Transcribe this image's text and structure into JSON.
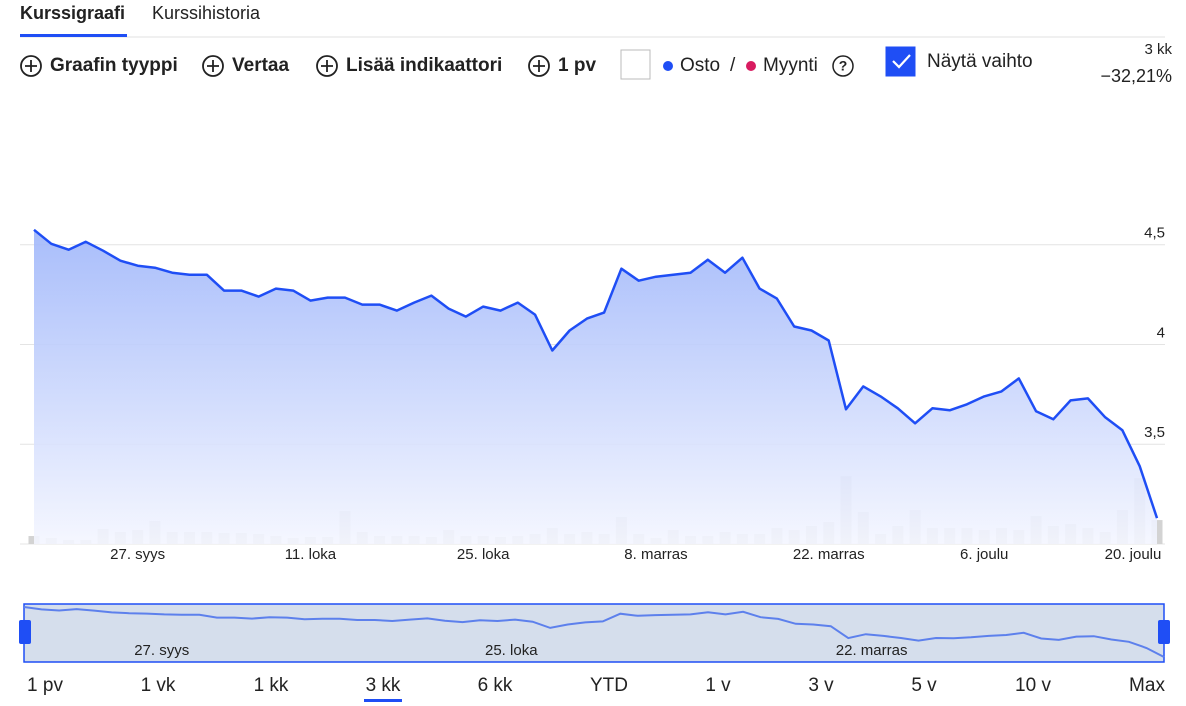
{
  "tabs": [
    "Kurssigraafi",
    "Kurssihistoria"
  ],
  "active_tab": 0,
  "toolbar": {
    "buttons": [
      "Graafin tyyppi",
      "Vertaa",
      "Lisää indikaattori",
      "1 pv"
    ],
    "separator": "/",
    "sell": "Myynti",
    "sell_color": "#d81b60",
    "help": "?",
    "show_volume": "Näytä vaihto",
    "show_volume_checked": true
  },
  "period": {
    "label": "3 kk",
    "change": "−32,21%"
  },
  "chart_data": {
    "type": "line",
    "categories": [
      null,
      null,
      null,
      null,
      null,
      null,
      "27. syys",
      null,
      null,
      null,
      null,
      null,
      null,
      null,
      null,
      null,
      "11. loka",
      null,
      null,
      null,
      null,
      null,
      null,
      null,
      null,
      null,
      "25. loka",
      null,
      null,
      null,
      null,
      null,
      null,
      null,
      null,
      null,
      "8. marras",
      null,
      null,
      null,
      null,
      null,
      null,
      null,
      null,
      null,
      "22. marras",
      null,
      null,
      null,
      null,
      null,
      null,
      null,
      null,
      "6. joulu",
      null,
      null,
      null,
      null,
      null,
      null,
      null,
      null,
      "20. joulu",
      null
    ],
    "series": [
      {
        "name": "Osto",
        "color": "#1f4ef5",
        "values": [
          4.575,
          4.505,
          4.475,
          4.515,
          4.47,
          4.42,
          4.395,
          4.385,
          4.36,
          4.35,
          4.35,
          4.27,
          4.27,
          4.24,
          4.28,
          4.27,
          4.22,
          4.235,
          4.235,
          4.2,
          4.2,
          4.17,
          4.21,
          4.245,
          4.18,
          4.14,
          4.19,
          4.17,
          4.21,
          4.15,
          3.97,
          4.07,
          4.13,
          4.16,
          4.38,
          4.32,
          4.34,
          4.35,
          4.36,
          4.425,
          4.36,
          4.435,
          4.28,
          4.23,
          4.09,
          4.07,
          4.02,
          3.675,
          3.79,
          3.74,
          3.68,
          3.605,
          3.68,
          3.67,
          3.7,
          3.74,
          3.765,
          3.83,
          3.665,
          3.625,
          3.72,
          3.73,
          3.635,
          3.57,
          3.39,
          3.13
        ]
      }
    ],
    "volume": {
      "color": "#d3d3d3",
      "values": [
        4,
        3,
        2,
        2,
        7.5,
        6,
        7,
        11.5,
        6,
        6,
        6,
        5.5,
        5.5,
        5,
        4,
        3,
        3.5,
        3.5,
        16.5,
        6,
        4,
        4,
        4,
        3.5,
        7,
        4,
        4,
        3.5,
        4,
        5,
        8,
        5,
        6,
        5,
        13.5,
        5,
        3,
        7,
        4,
        4,
        6,
        5,
        5,
        8,
        7,
        9,
        11,
        34,
        16,
        5,
        9,
        17,
        8,
        8,
        8,
        7,
        8,
        7,
        14,
        9,
        10,
        8,
        6,
        17,
        33,
        12
      ]
    },
    "ylim": [
      3,
      5
    ],
    "y2lim": [
      0,
      100
    ],
    "yticks": [
      {
        "value": 3.5,
        "label": "3,5"
      },
      4,
      {
        "value": 4.5,
        "label": "4,5"
      }
    ],
    "grid": true
  },
  "navigator_labels": [
    6,
    26,
    46
  ],
  "ranges": [
    "1 pv",
    "1 vk",
    "1 kk",
    "3 kk",
    "6 kk",
    "YTD",
    "1 v",
    "3 v",
    "5 v",
    "10 v",
    "Max"
  ],
  "active_range": 3
}
